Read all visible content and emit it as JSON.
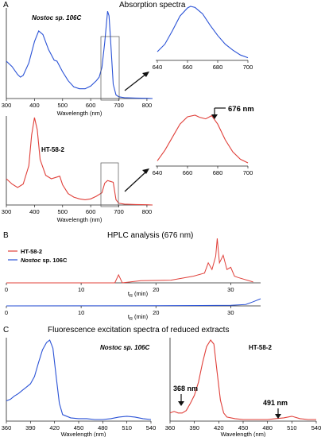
{
  "panels": {
    "A": {
      "letter": "A",
      "title": "Absorption spectra"
    },
    "B": {
      "letter": "B",
      "title": "HPLC analysis (676 nm)"
    },
    "C": {
      "letter": "C",
      "title": "Fluorescence excitation spectra of reduced extracts"
    }
  },
  "colors": {
    "blue": "#2a52d6",
    "red": "#e0403a",
    "axis": "#222222"
  },
  "chart_data": [
    {
      "id": "A1",
      "type": "line",
      "color": "blue",
      "label": "Nostoc sp. 106C",
      "xlabel": "Wavelength (nm)",
      "xlim": [
        300,
        820
      ],
      "xticks": [
        300,
        400,
        500,
        600,
        700,
        800
      ],
      "x": [
        300,
        320,
        340,
        350,
        360,
        380,
        400,
        415,
        430,
        450,
        470,
        480,
        500,
        520,
        540,
        560,
        580,
        600,
        620,
        630,
        640,
        650,
        660,
        665,
        670,
        680,
        690,
        700,
        720,
        760,
        800,
        820
      ],
      "y": [
        0.42,
        0.36,
        0.27,
        0.24,
        0.26,
        0.4,
        0.64,
        0.76,
        0.72,
        0.55,
        0.43,
        0.42,
        0.3,
        0.2,
        0.13,
        0.11,
        0.11,
        0.14,
        0.2,
        0.24,
        0.35,
        0.63,
        0.98,
        0.93,
        0.7,
        0.16,
        0.04,
        0.02,
        0.01,
        0.005,
        0.003,
        0.0
      ],
      "inset": {
        "xlim": [
          640,
          700
        ],
        "xticks": [
          640,
          660,
          680,
          700
        ],
        "x": [
          640,
          645,
          650,
          655,
          660,
          662,
          665,
          670,
          675,
          680,
          685,
          690,
          695,
          700
        ],
        "y": [
          0.16,
          0.3,
          0.55,
          0.82,
          0.97,
          1.0,
          0.98,
          0.86,
          0.65,
          0.46,
          0.3,
          0.19,
          0.1,
          0.05
        ]
      }
    },
    {
      "id": "A2",
      "type": "line",
      "color": "red",
      "label": "HT-58-2",
      "xlabel": "Wavelength (nm)",
      "xlim": [
        300,
        820
      ],
      "xticks": [
        300,
        400,
        500,
        600,
        700,
        800
      ],
      "x": [
        300,
        320,
        340,
        360,
        380,
        390,
        400,
        410,
        420,
        440,
        460,
        480,
        490,
        500,
        520,
        540,
        560,
        580,
        600,
        620,
        640,
        650,
        660,
        670,
        680,
        690,
        700,
        720,
        760,
        800,
        820
      ],
      "y": [
        0.3,
        0.24,
        0.2,
        0.24,
        0.45,
        0.8,
        1.0,
        0.86,
        0.52,
        0.34,
        0.3,
        0.32,
        0.33,
        0.23,
        0.13,
        0.09,
        0.07,
        0.06,
        0.07,
        0.1,
        0.14,
        0.25,
        0.28,
        0.27,
        0.26,
        0.06,
        0.02,
        0.01,
        0.005,
        0.003,
        0.0
      ],
      "inset": {
        "xlim": [
          640,
          700
        ],
        "xticks": [
          640,
          660,
          680,
          700
        ],
        "x": [
          640,
          645,
          650,
          655,
          660,
          665,
          668,
          672,
          676,
          680,
          685,
          690,
          695,
          700
        ],
        "y": [
          0.1,
          0.3,
          0.55,
          0.8,
          0.94,
          0.97,
          0.93,
          0.9,
          0.96,
          0.8,
          0.5,
          0.27,
          0.13,
          0.06
        ]
      },
      "annotation": "676 nm"
    },
    {
      "id": "B",
      "type": "line",
      "xlabel": "t",
      "xlabel_sub": "R",
      "xlabel_unit": "(min)",
      "xlim": [
        0,
        34
      ],
      "xticks": [
        0,
        10,
        20,
        30
      ],
      "series": [
        {
          "name": "HT-58-2",
          "color": "red",
          "x": [
            0,
            10,
            14.5,
            15,
            15.5,
            18,
            22,
            25,
            26.5,
            27,
            27.5,
            28,
            28.2,
            28.5,
            29,
            29.5,
            30,
            30.5,
            31,
            33
          ],
          "y": [
            0.0,
            0.0,
            0.0,
            0.18,
            0.0,
            0.05,
            0.06,
            0.15,
            0.22,
            0.45,
            0.3,
            0.6,
            1.0,
            0.45,
            0.62,
            0.3,
            0.35,
            0.15,
            0.12,
            0.02
          ]
        },
        {
          "name_prefix": "Nostoc",
          "name_suffix": " sp. 106C",
          "color": "blue",
          "x": [
            0,
            10,
            20,
            30,
            32,
            33,
            34
          ],
          "y": [
            0.0,
            0.01,
            0.02,
            0.05,
            0.12,
            0.35,
            0.6
          ]
        }
      ]
    },
    {
      "id": "C1",
      "type": "line",
      "color": "blue",
      "label": "Nostoc sp. 106C",
      "xlabel": "Wavelength (nm)",
      "xlim": [
        360,
        540
      ],
      "xticks": [
        360,
        390,
        420,
        450,
        480,
        510,
        540
      ],
      "x": [
        360,
        365,
        370,
        375,
        380,
        385,
        390,
        395,
        400,
        405,
        410,
        414,
        418,
        422,
        426,
        430,
        440,
        450,
        460,
        470,
        480,
        490,
        500,
        510,
        520,
        530,
        540
      ],
      "y": [
        0.25,
        0.27,
        0.31,
        0.34,
        0.38,
        0.42,
        0.46,
        0.55,
        0.72,
        0.88,
        0.97,
        1.0,
        0.9,
        0.55,
        0.22,
        0.08,
        0.04,
        0.03,
        0.03,
        0.02,
        0.02,
        0.03,
        0.05,
        0.06,
        0.05,
        0.03,
        0.02
      ]
    },
    {
      "id": "C2",
      "type": "line",
      "color": "red",
      "label": "HT-58-2",
      "xlabel": "Wavelength (nm)",
      "xlim": [
        360,
        540
      ],
      "xticks": [
        360,
        390,
        420,
        450,
        480,
        510,
        540
      ],
      "x": [
        360,
        365,
        370,
        375,
        380,
        385,
        390,
        395,
        400,
        405,
        410,
        414,
        418,
        422,
        426,
        430,
        440,
        450,
        460,
        470,
        480,
        490,
        500,
        510,
        520,
        530,
        540
      ],
      "y": [
        0.1,
        0.12,
        0.1,
        0.1,
        0.13,
        0.22,
        0.32,
        0.48,
        0.72,
        0.92,
        1.0,
        0.95,
        0.6,
        0.26,
        0.1,
        0.05,
        0.03,
        0.02,
        0.02,
        0.02,
        0.02,
        0.03,
        0.04,
        0.06,
        0.03,
        0.02,
        0.02
      ],
      "annotations": [
        "368 nm",
        "491 nm"
      ]
    }
  ]
}
